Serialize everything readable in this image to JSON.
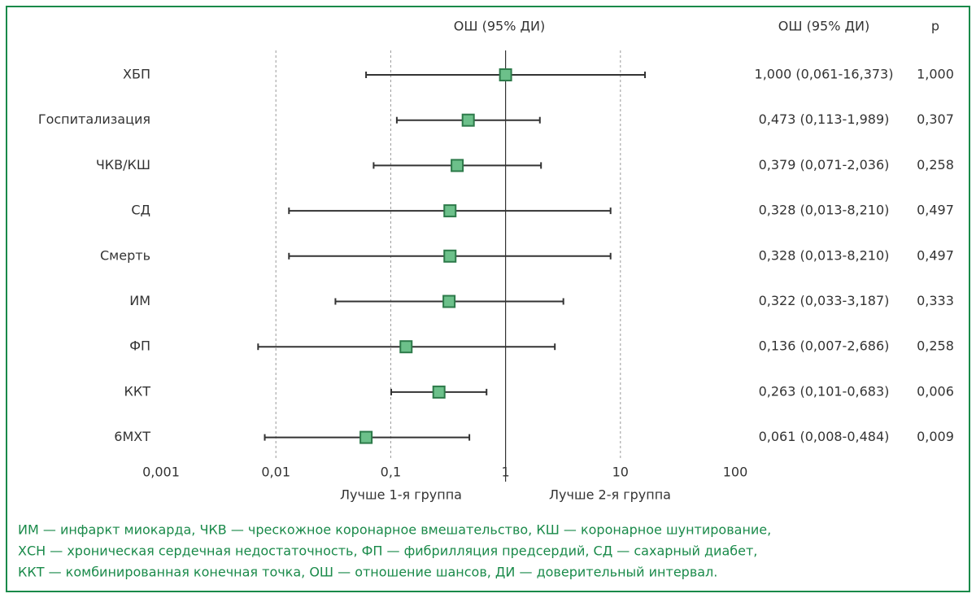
{
  "chart_data": {
    "type": "forest",
    "title": "ОШ (95% ДИ)",
    "columns": [
      "ОШ (95% ДИ)",
      "p"
    ],
    "categories": [
      "ХБП",
      "Госпитализация",
      "ЧКВ/КШ",
      "СД",
      "Смерть",
      "ИМ",
      "ФП",
      "ККТ",
      "6МХТ"
    ],
    "values": [
      1.0,
      0.473,
      0.379,
      0.328,
      0.328,
      0.322,
      0.136,
      0.263,
      0.061
    ],
    "lower": [
      0.061,
      0.113,
      0.071,
      0.013,
      0.013,
      0.033,
      0.007,
      0.101,
      0.008
    ],
    "upper": [
      16.373,
      1.989,
      2.036,
      8.21,
      8.21,
      3.187,
      2.686,
      0.683,
      0.484
    ],
    "value_labels": [
      "1,000 (0,061-16,373)",
      "0,473 (0,113-1,989)",
      "0,379 (0,071-2,036)",
      "0,328 (0,013-8,210)",
      "0,328 (0,013-8,210)",
      "0,322 (0,033-3,187)",
      "0,136 (0,007-2,686)",
      "0,263 (0,101-0,683)",
      "0,061 (0,008-0,484)"
    ],
    "p": [
      1.0,
      0.307,
      0.258,
      0.497,
      0.497,
      0.333,
      0.258,
      0.006,
      0.009
    ],
    "p_labels": [
      "1,000",
      "0,307",
      "0,258",
      "0,497",
      "0,497",
      "0,333",
      "0,258",
      "0,006",
      "0,009"
    ],
    "xlim": [
      0.001,
      100
    ],
    "xticks": [
      {
        "value": 0.001,
        "label": "0,001"
      },
      {
        "value": 0.01,
        "label": "0,01"
      },
      {
        "value": 0.1,
        "label": "0,1"
      },
      1,
      10,
      100
    ],
    "log_x": true,
    "grid": true,
    "reference_line": 1,
    "color": "#6cc08a",
    "annotations": [
      "Лучше 1-я группа",
      "Лучше 2-я группа"
    ],
    "notes": [
      "ИМ — инфаркт миокарда, ЧКВ — чрескожное коронарное вмешательство, КШ — коронарное шунтирование,",
      "ХСН — хроническая сердечная недостаточность, ФП — фибрилляция предсердий, СД — сахарный диабет,",
      "ККТ — комбинированная конечная точка, ОШ — отношение шансов, ДИ — доверительный интервал."
    ]
  }
}
